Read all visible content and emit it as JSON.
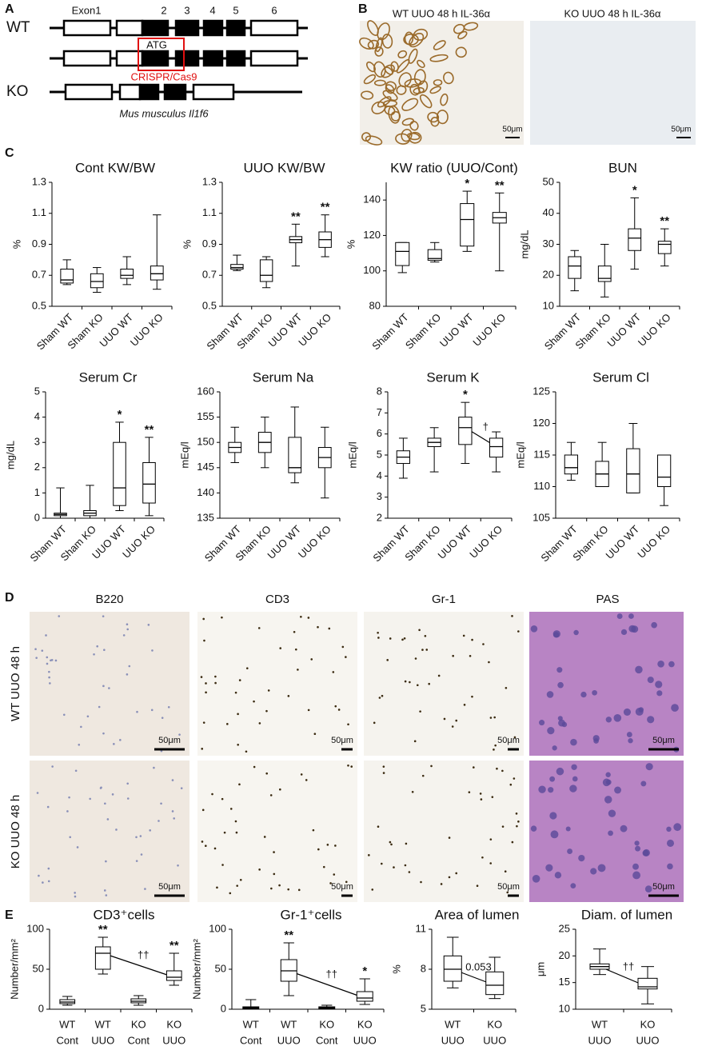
{
  "panels": {
    "A": {
      "label": "A",
      "rows": [
        "WT",
        "KO"
      ],
      "exons": [
        "Exon1",
        "2",
        "3",
        "4",
        "5",
        "6"
      ],
      "start_codon": "ATG",
      "editing": "CRISPR/Cas9",
      "species": "Mus musculus Il1f6"
    },
    "B": {
      "label": "B",
      "images": [
        {
          "caption": "WT UUO 48 h IL-36α",
          "scale": "50μm"
        },
        {
          "caption": "KO UUO 48 h IL-36α",
          "scale": "50μm"
        }
      ]
    },
    "C": {
      "label": "C"
    },
    "D": {
      "label": "D",
      "columns": [
        "B220",
        "CD3",
        "Gr-1",
        "PAS"
      ],
      "rows": [
        "WT UUO 48 h",
        "KO UUO 48 h"
      ],
      "scales": [
        [
          "50μm",
          "50μm",
          "50μm",
          "50μm"
        ],
        [
          "50μm",
          "50μm",
          "50μm",
          "50μm"
        ]
      ]
    },
    "E": {
      "label": "E"
    }
  },
  "chart_data": [
    {
      "type": "box",
      "title": "Cont KW/BW",
      "y_label": "%",
      "categories": [
        "Sham WT",
        "Sham KO",
        "UUO WT",
        "UUO KO"
      ],
      "min": [
        0.64,
        0.59,
        0.64,
        0.61
      ],
      "q1": [
        0.65,
        0.62,
        0.68,
        0.67
      ],
      "median": [
        0.67,
        0.66,
        0.7,
        0.71
      ],
      "q3": [
        0.74,
        0.71,
        0.74,
        0.76
      ],
      "max": [
        0.8,
        0.75,
        0.82,
        1.09
      ],
      "ylim": [
        0.5,
        1.3
      ],
      "yticks": [
        {
          "value": 0.5,
          "label": "0.5"
        },
        {
          "value": 0.7,
          "label": "0.7"
        },
        {
          "value": 0.9,
          "label": "0.9"
        },
        {
          "value": 1.1,
          "label": "1.1"
        },
        {
          "value": 1.3,
          "label": "1.3"
        }
      ]
    },
    {
      "type": "box",
      "title": "UUO KW/BW",
      "y_label": "%",
      "categories": [
        "Sham WT",
        "Sham KO",
        "UUO WT",
        "UUO KO"
      ],
      "min": [
        0.73,
        0.62,
        0.76,
        0.82
      ],
      "q1": [
        0.74,
        0.66,
        0.91,
        0.88
      ],
      "median": [
        0.75,
        0.7,
        0.93,
        0.93
      ],
      "q3": [
        0.77,
        0.8,
        0.95,
        0.98
      ],
      "max": [
        0.83,
        0.82,
        1.03,
        1.09
      ],
      "significance": [
        null,
        null,
        "**",
        "**"
      ],
      "ylim": [
        0.5,
        1.3
      ],
      "yticks": [
        {
          "value": 0.5,
          "label": "0.5"
        },
        {
          "value": 0.7,
          "label": "0.7"
        },
        {
          "value": 0.9,
          "label": "0.9"
        },
        {
          "value": 1.1,
          "label": "1.1"
        },
        {
          "value": 1.3,
          "label": "1.3"
        }
      ]
    },
    {
      "type": "box",
      "title": "KW ratio (UUO/Cont)",
      "y_label": "%",
      "categories": [
        "Sham WT",
        "Sham KO",
        "UUO WT",
        "UUO KO"
      ],
      "min": [
        99,
        105,
        111,
        100
      ],
      "q1": [
        103,
        106,
        114,
        127
      ],
      "median": [
        111,
        107,
        129,
        130
      ],
      "q3": [
        116,
        112,
        138,
        133
      ],
      "max": [
        116,
        116,
        145,
        144
      ],
      "significance": [
        null,
        null,
        "*",
        "**"
      ],
      "ylim": [
        80,
        150
      ],
      "yticks": [
        80,
        100,
        120,
        140
      ]
    },
    {
      "type": "box",
      "title": "BUN",
      "y_label": "mg/dL",
      "categories": [
        "Sham WT",
        "Sham KO",
        "UUO WT",
        "UUO KO"
      ],
      "min": [
        15,
        13,
        22,
        23
      ],
      "q1": [
        19,
        18,
        28,
        27
      ],
      "median": [
        23,
        19,
        32,
        30
      ],
      "q3": [
        26,
        23,
        35,
        31
      ],
      "max": [
        28,
        30,
        45,
        35
      ],
      "significance": [
        null,
        null,
        "*",
        "**"
      ],
      "ylim": [
        10,
        50
      ],
      "yticks": [
        10,
        20,
        30,
        40,
        50
      ]
    },
    {
      "type": "box",
      "title": "Serum Cr",
      "y_label": "mg/dL",
      "categories": [
        "Sham WT",
        "Sham KO",
        "UUO WT",
        "UUO KO"
      ],
      "min": [
        0,
        0,
        0.3,
        0.1
      ],
      "q1": [
        0.1,
        0.1,
        0.5,
        0.6
      ],
      "median": [
        0.15,
        0.2,
        1.2,
        1.35
      ],
      "q3": [
        0.2,
        0.3,
        3,
        2.2
      ],
      "max": [
        1.2,
        1.3,
        3.8,
        3.2
      ],
      "significance": [
        null,
        null,
        "*",
        "**"
      ],
      "ylim": [
        0,
        5
      ],
      "yticks": [
        0,
        1,
        2,
        3,
        4,
        5
      ]
    },
    {
      "type": "box",
      "title": "Serum Na",
      "y_label": "mEq/l",
      "categories": [
        "Sham WT",
        "Sham KO",
        "UUO WT",
        "UUO KO"
      ],
      "min": [
        146,
        145,
        142,
        139
      ],
      "q1": [
        148,
        148,
        144,
        145
      ],
      "median": [
        149,
        150,
        145,
        147
      ],
      "q3": [
        150,
        152,
        151,
        149
      ],
      "max": [
        153,
        155,
        157,
        153
      ],
      "ylim": [
        135,
        160
      ],
      "yticks": [
        135,
        140,
        145,
        150,
        155,
        160
      ]
    },
    {
      "type": "box",
      "title": "Serum K",
      "y_label": "mEq/l",
      "categories": [
        "Sham WT",
        "Sham KO",
        "UUO WT",
        "UUO KO"
      ],
      "min": [
        3.9,
        4.2,
        4.6,
        4.2
      ],
      "q1": [
        4.6,
        5.4,
        5.5,
        4.9
      ],
      "median": [
        4.9,
        5.6,
        6.3,
        5.4
      ],
      "q3": [
        5.2,
        5.8,
        6.8,
        5.8
      ],
      "max": [
        5.8,
        6.3,
        7.5,
        6.1
      ],
      "significance": [
        null,
        null,
        "*",
        null
      ],
      "comparison_label": "†",
      "ylim": [
        2,
        8
      ],
      "yticks": [
        2,
        3,
        4,
        5,
        6,
        7,
        8
      ]
    },
    {
      "type": "box",
      "title": "Serum Cl",
      "y_label": "mEq/l",
      "categories": [
        "Sham WT",
        "Sham KO",
        "UUO WT",
        "UUO KO"
      ],
      "min": [
        111,
        110,
        109,
        107
      ],
      "q1": [
        112,
        110,
        109,
        110
      ],
      "median": [
        113,
        112,
        112,
        111.5
      ],
      "q3": [
        115,
        114,
        116,
        115
      ],
      "max": [
        117,
        117,
        120,
        115
      ],
      "ylim": [
        105,
        125
      ],
      "yticks": [
        105,
        110,
        115,
        120,
        125
      ]
    },
    {
      "type": "box",
      "title": "CD3⁺cells",
      "y_label": "Number/mm²",
      "categories": [
        [
          "WT",
          "Cont"
        ],
        [
          "WT",
          "UUO"
        ],
        [
          "KO",
          "Cont"
        ],
        [
          "KO",
          "UUO"
        ]
      ],
      "min": [
        5,
        44,
        5,
        30
      ],
      "q1": [
        7,
        50,
        8,
        36
      ],
      "median": [
        9,
        70,
        10,
        40
      ],
      "q3": [
        12,
        78,
        13,
        48
      ],
      "max": [
        16,
        90,
        17,
        70
      ],
      "significance": [
        null,
        "**",
        null,
        "**"
      ],
      "comparison_label": "††",
      "ylim": [
        0,
        100
      ],
      "yticks": [
        0,
        50,
        100
      ]
    },
    {
      "type": "box",
      "title": "Gr-1⁺cells",
      "y_label": "Number/mm²",
      "categories": [
        [
          "WT",
          "Cont"
        ],
        [
          "WT",
          "UUO"
        ],
        [
          "KO",
          "Cont"
        ],
        [
          "KO",
          "UUO"
        ]
      ],
      "min": [
        0,
        17,
        0,
        6
      ],
      "q1": [
        1,
        35,
        1,
        10
      ],
      "median": [
        2,
        48,
        2,
        14
      ],
      "q3": [
        3,
        62,
        3,
        22
      ],
      "max": [
        12,
        83,
        5,
        38
      ],
      "significance": [
        null,
        "**",
        null,
        "*"
      ],
      "comparison_label": "††",
      "ylim": [
        0,
        100
      ],
      "yticks": [
        0,
        50,
        100
      ]
    },
    {
      "type": "box",
      "title": "Area of lumen",
      "y_label": "%",
      "categories": [
        [
          "WT",
          "UUO"
        ],
        [
          "KO",
          "UUO"
        ]
      ],
      "min": [
        6.6,
        5.8
      ],
      "q1": [
        7.1,
        6.1
      ],
      "median": [
        8,
        6.8
      ],
      "q3": [
        9,
        7.8
      ],
      "max": [
        10.4,
        8.9
      ],
      "comparison_label": "0.053",
      "ylim": [
        5,
        11
      ],
      "yticks": [
        5,
        8,
        11
      ]
    },
    {
      "type": "box",
      "title": "Diam. of lumen",
      "y_label": "μm",
      "categories": [
        [
          "WT",
          "UUO"
        ],
        [
          "KO",
          "UUO"
        ]
      ],
      "min": [
        16.5,
        11
      ],
      "q1": [
        17.5,
        13.8
      ],
      "median": [
        18,
        14.2
      ],
      "q3": [
        18.5,
        15.8
      ],
      "max": [
        21.3,
        18
      ],
      "comparison_label": "††",
      "ylim": [
        10,
        25
      ],
      "yticks": [
        10,
        15,
        20,
        25
      ]
    }
  ]
}
